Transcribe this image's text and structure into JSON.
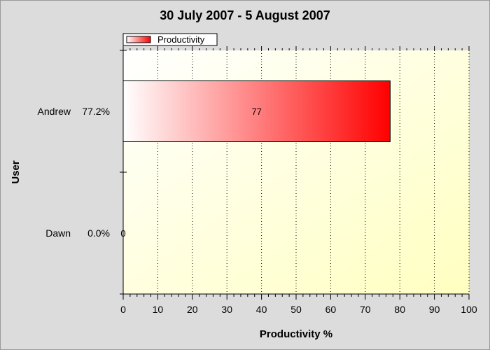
{
  "chart_data": {
    "type": "bar",
    "orientation": "horizontal",
    "title": "30 July 2007 - 5 August 2007",
    "xlabel": "Productivity %",
    "ylabel": "User",
    "xlim": [
      0,
      100
    ],
    "xticks": [
      "0",
      "10",
      "20",
      "30",
      "40",
      "50",
      "60",
      "70",
      "80",
      "90",
      "100"
    ],
    "categories": [
      "Andrew",
      "Dawn"
    ],
    "category_labels": [
      {
        "name": "Andrew",
        "pct": "77.2%"
      },
      {
        "name": "Dawn",
        "pct": "0.0%"
      }
    ],
    "series": [
      {
        "name": "Productivity",
        "values": [
          77.2,
          0
        ],
        "data_labels": [
          "77",
          "0"
        ]
      }
    ],
    "legend": "top-left",
    "grid": "vertical dotted",
    "colors": {
      "bar_start": "#ffffff",
      "bar_end": "#ff0000",
      "plot_bg_start": "#ffffff",
      "plot_bg_end": "#ffffc0",
      "page_bg": "#dcdcdc"
    }
  }
}
